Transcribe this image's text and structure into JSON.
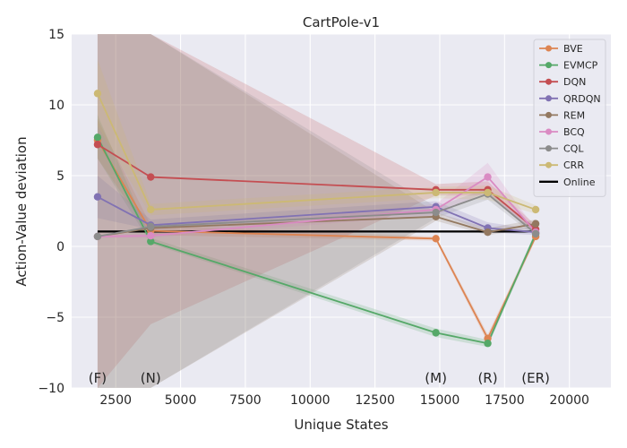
{
  "chart_data": {
    "type": "line",
    "title": "CartPole-v1",
    "xlabel": "Unique States",
    "ylabel": "Action-Value deviation",
    "xlim": [
      800,
      21600
    ],
    "ylim": [
      -10,
      15
    ],
    "xticks": [
      2500,
      5000,
      7500,
      10000,
      12500,
      15000,
      17500,
      20000
    ],
    "yticks": [
      -10,
      -5,
      0,
      5,
      10,
      15
    ],
    "x": [
      1800,
      3850,
      14850,
      16850,
      18700
    ],
    "grid": true,
    "background": "#eaeaf2",
    "legend_position": "top-right",
    "online": {
      "name": "Online",
      "value": 1.05,
      "color": "#000000"
    },
    "annotations": [
      {
        "text": "(F)",
        "x": 1800,
        "y": -9.3
      },
      {
        "text": "(N)",
        "x": 3850,
        "y": -9.3
      },
      {
        "text": "(M)",
        "x": 14850,
        "y": -9.3
      },
      {
        "text": "(R)",
        "x": 16850,
        "y": -9.3
      },
      {
        "text": "(ER)",
        "x": 18700,
        "y": -9.3
      }
    ],
    "series": [
      {
        "name": "BVE",
        "color": "#dd8452",
        "values": [
          7.5,
          1.1,
          0.55,
          -6.5,
          0.7
        ],
        "lower": [
          6.2,
          0.8,
          0.4,
          -6.8,
          0.5
        ],
        "upper": [
          9.0,
          1.5,
          0.7,
          -6.2,
          0.9
        ]
      },
      {
        "name": "EVMCP",
        "color": "#55a868",
        "values": [
          7.7,
          0.35,
          -6.1,
          -6.85,
          0.9
        ],
        "lower": [
          6.2,
          0.2,
          -6.4,
          -7.1,
          0.7
        ],
        "upper": [
          9.3,
          0.6,
          -5.8,
          -6.6,
          1.1
        ]
      },
      {
        "name": "DQN",
        "color": "#c44e52",
        "values": [
          7.2,
          4.9,
          4.0,
          4.0,
          1.2
        ],
        "lower": [
          -10,
          -5.5,
          3.6,
          3.6,
          0.9
        ],
        "upper": [
          15,
          15,
          4.4,
          4.6,
          1.5
        ]
      },
      {
        "name": "QRDQN",
        "color": "#8172b3",
        "values": [
          3.5,
          1.5,
          2.8,
          1.3,
          1.0
        ],
        "lower": [
          2.0,
          1.2,
          2.4,
          1.0,
          0.8
        ],
        "upper": [
          5.0,
          1.9,
          3.2,
          1.7,
          1.2
        ]
      },
      {
        "name": "REM",
        "color": "#937860",
        "values": [
          0.7,
          1.3,
          2.1,
          1.0,
          1.6
        ],
        "lower": [
          -10,
          -10,
          1.8,
          0.8,
          1.3
        ],
        "upper": [
          15,
          15,
          2.4,
          1.3,
          1.9
        ]
      },
      {
        "name": "BCQ",
        "color": "#da8bc3",
        "values": [
          0.7,
          0.75,
          2.6,
          4.9,
          1.0
        ],
        "lower": [
          0.6,
          0.6,
          2.2,
          3.9,
          0.8
        ],
        "upper": [
          0.8,
          0.9,
          3.0,
          5.9,
          1.2
        ]
      },
      {
        "name": "CQL",
        "color": "#8c8c8c",
        "values": [
          0.7,
          1.4,
          2.4,
          3.7,
          0.9
        ],
        "lower": [
          -10,
          -10,
          2.0,
          3.3,
          0.7
        ],
        "upper": [
          15,
          15,
          2.8,
          4.1,
          1.1
        ]
      },
      {
        "name": "CRR",
        "color": "#ccb974",
        "values": [
          10.8,
          2.6,
          3.8,
          3.8,
          2.6
        ],
        "lower": [
          8.5,
          2.2,
          3.4,
          3.3,
          2.3
        ],
        "upper": [
          13.2,
          3.0,
          4.2,
          4.3,
          2.9
        ]
      }
    ]
  }
}
